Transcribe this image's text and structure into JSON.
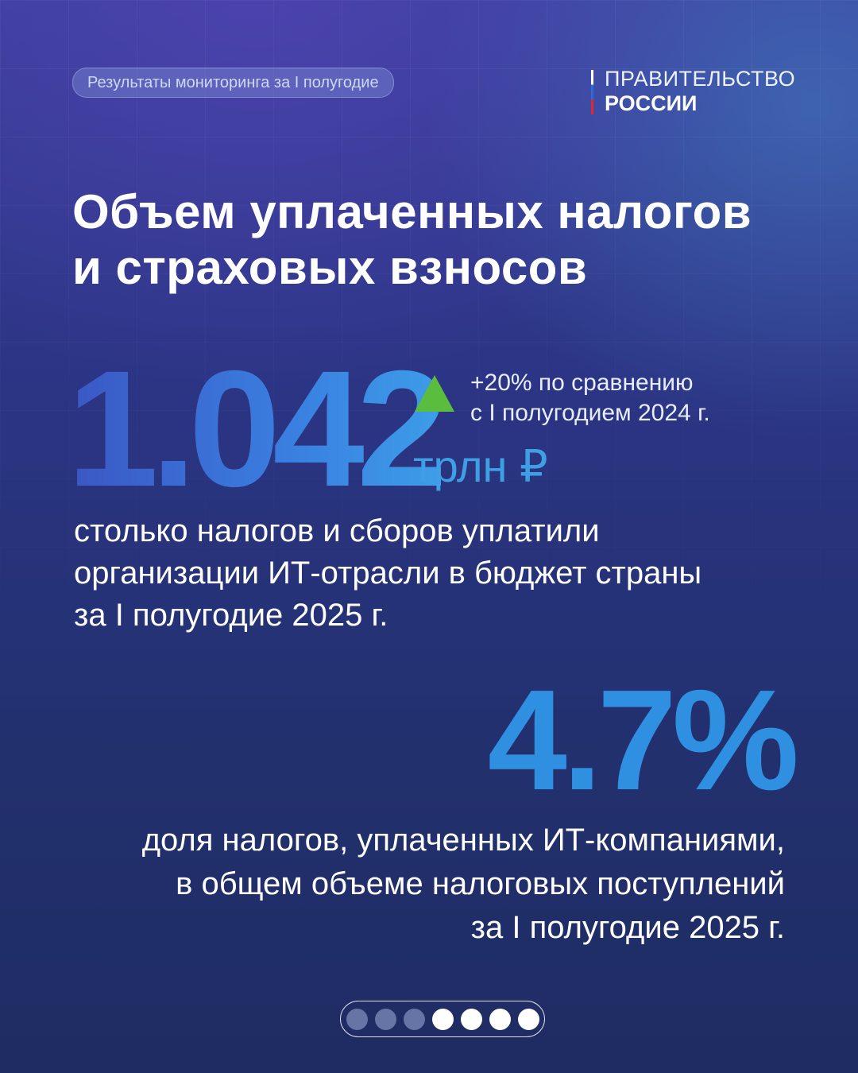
{
  "header": {
    "tag_label": "Результаты мониторинга за I полугодие",
    "brand_line1": "ПРАВИТЕЛЬСТВО",
    "brand_line2": "РОССИИ"
  },
  "title": {
    "line1": "Объем уплаченных налогов",
    "line2": "и страховых взносов"
  },
  "stat1": {
    "value": "1.042",
    "unit": "трлн ₽",
    "growth_line1": "+20% по сравнению",
    "growth_line2": "с I полугодием 2024 г.",
    "desc_line1": "столько налогов и сборов уплатили",
    "desc_line2": "организации ИТ-отрасли в бюджет страны",
    "desc_line3": "за I полугодие 2025 г."
  },
  "stat2": {
    "value": "4.7%",
    "desc_line1": "доля налогов, уплаченных ИТ-компаниями,",
    "desc_line2": "в общем объеме налоговых поступлений",
    "desc_line3": "за I полугодие 2025 г."
  },
  "colors": {
    "arrow_up": "#5bbd3d",
    "accent_blue": "#2f8fe0",
    "flag_white": "#ffffff",
    "flag_blue": "#2d6bd6",
    "flag_red": "#e02630"
  },
  "pager": {
    "total": 7,
    "dots": [
      {
        "state": "inactive"
      },
      {
        "state": "inactive"
      },
      {
        "state": "inactive"
      },
      {
        "state": "active"
      },
      {
        "state": "active"
      },
      {
        "state": "active"
      },
      {
        "state": "active"
      }
    ]
  }
}
